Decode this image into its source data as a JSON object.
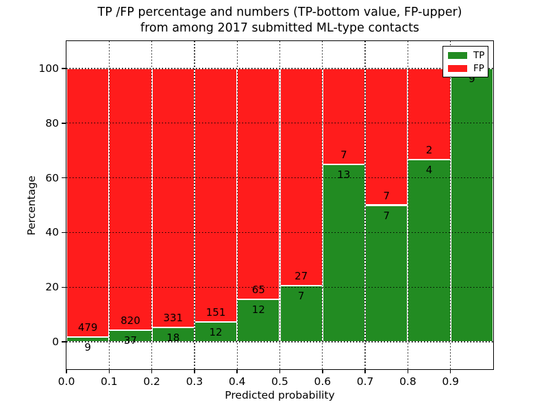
{
  "title": {
    "line1": "TP /FP percentage and numbers (TP-bottom value, FP-upper)",
    "line2": "from among 2017 submitted ML-type contacts"
  },
  "chart_data": {
    "type": "bar",
    "stacked": true,
    "orientation": "vertical",
    "title": "TP /FP percentage and numbers (TP-bottom value, FP-upper) from among 2017 submitted ML-type contacts",
    "xlabel": "Predicted probability",
    "ylabel": "Percentage",
    "xlim": [
      0.0,
      1.0
    ],
    "ylim": [
      -10,
      110
    ],
    "xticks_num": [
      0.0,
      0.1,
      0.2,
      0.3,
      0.4,
      0.5,
      0.6,
      0.7,
      0.8,
      0.9
    ],
    "xtick_labels": [
      "0.0",
      "0.1",
      "0.2",
      "0.3",
      "0.4",
      "0.5",
      "0.6",
      "0.7",
      "0.8",
      "0.9"
    ],
    "yticks_num": [
      0,
      20,
      40,
      60,
      80,
      100
    ],
    "ytick_labels": [
      "0",
      "20",
      "40",
      "60",
      "80",
      "100"
    ],
    "grid": true,
    "grid_style": "dotted",
    "bin_start": [
      0.0,
      0.1,
      0.2,
      0.3,
      0.4,
      0.5,
      0.6,
      0.7,
      0.8,
      0.9
    ],
    "bin_width": 0.1,
    "units": "percent of per-bin total (TP+FP = 100%)",
    "series": [
      {
        "name": "TP",
        "color": "#228b22",
        "counts": [
          9,
          37,
          18,
          12,
          12,
          7,
          13,
          7,
          4,
          9
        ]
      },
      {
        "name": "FP",
        "color": "#ff1c1c",
        "counts": [
          479,
          820,
          331,
          151,
          65,
          27,
          7,
          7,
          2,
          0
        ]
      }
    ],
    "tp_percent": [
      1.8,
      4.3,
      5.2,
      7.4,
      15.6,
      20.6,
      65.0,
      50.0,
      66.7,
      100.0
    ],
    "legend": {
      "position": "upper right",
      "entries": [
        "TP",
        "FP"
      ]
    }
  },
  "colors": {
    "tp": "#228b22",
    "fp": "#ff1c1c",
    "grid": "#000000",
    "bar_edge": "#ffffff",
    "background": "#ffffff"
  }
}
